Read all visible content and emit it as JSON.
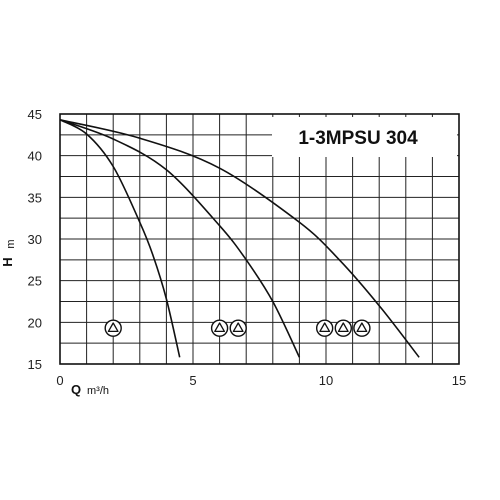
{
  "chart_data": {
    "type": "line",
    "title": "1-3MPSU 304",
    "xlabel": "Q",
    "xunit": "m³/h",
    "ylabel": "H",
    "yunit": "m",
    "xlim": [
      0,
      15
    ],
    "ylim": [
      15,
      45
    ],
    "x_ticks": [
      0,
      5,
      10,
      15
    ],
    "y_ticks": [
      15,
      20,
      25,
      30,
      35,
      40,
      45
    ],
    "grid": true,
    "series": [
      {
        "pumps": 1,
        "points": [
          [
            0,
            44.3
          ],
          [
            1,
            42.6
          ],
          [
            2,
            38.7
          ],
          [
            3,
            32.0
          ],
          [
            3.5,
            28.0
          ],
          [
            4,
            22.8
          ],
          [
            4.5,
            15.8
          ]
        ]
      },
      {
        "pumps": 2,
        "points": [
          [
            0,
            44.3
          ],
          [
            2,
            42.0
          ],
          [
            4,
            38.3
          ],
          [
            6,
            31.6
          ],
          [
            7,
            27.5
          ],
          [
            8,
            22.5
          ],
          [
            9,
            15.8
          ]
        ]
      },
      {
        "pumps": 3,
        "points": [
          [
            0,
            44.3
          ],
          [
            3,
            42.1
          ],
          [
            6,
            38.5
          ],
          [
            9,
            32.0
          ],
          [
            10.5,
            27.5
          ],
          [
            12,
            22.0
          ],
          [
            13.5,
            15.8
          ]
        ]
      }
    ],
    "pump_symbols": [
      {
        "pumps": 1,
        "q": [
          2.0
        ],
        "h": 19.3
      },
      {
        "pumps": 2,
        "q": [
          6.0,
          6.7
        ],
        "h": 19.3
      },
      {
        "pumps": 3,
        "q": [
          9.95,
          10.65,
          11.35
        ],
        "h": 19.3
      }
    ]
  }
}
